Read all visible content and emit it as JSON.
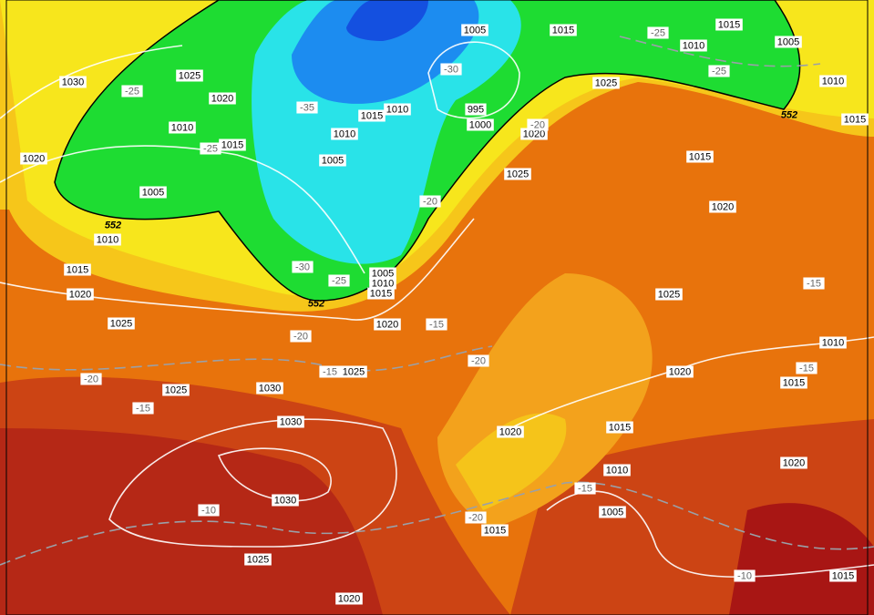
{
  "isobar_labels": [
    1030,
    1025,
    1020,
    1010,
    1015,
    1020,
    1005,
    1010,
    1015,
    1020,
    1025,
    1010,
    1005,
    1015,
    1010,
    1005,
    995,
    1000,
    1015,
    1010,
    1015,
    1005,
    1010,
    1015,
    1025,
    1020,
    1025,
    1015,
    1020,
    1005,
    1010,
    1015,
    1020,
    1025,
    1025,
    1030,
    1025,
    1030,
    1030,
    1025,
    1020,
    1020,
    1020,
    1010,
    1015,
    1015,
    1010,
    1005,
    1015,
    1020,
    1015
  ],
  "temperature_labels": [
    -25,
    -35,
    -25,
    -30,
    -25,
    -25,
    -20,
    -30,
    -25,
    -20,
    -15,
    -20,
    -15,
    -15,
    -20,
    -20,
    -15,
    -15,
    -10,
    -20,
    -15,
    -10
  ],
  "height_labels": [
    552,
    552,
    552
  ]
}
